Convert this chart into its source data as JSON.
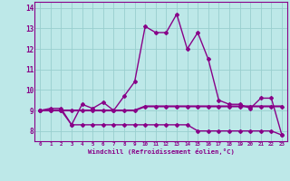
{
  "xlabel": "Windchill (Refroidissement éolien,°C)",
  "x_values": [
    0,
    1,
    2,
    3,
    4,
    5,
    6,
    7,
    8,
    9,
    10,
    11,
    12,
    13,
    14,
    15,
    16,
    17,
    18,
    19,
    20,
    21,
    22,
    23
  ],
  "line_upper_y": [
    9.0,
    9.0,
    9.0,
    9.0,
    9.0,
    9.0,
    9.0,
    9.0,
    9.0,
    9.0,
    9.2,
    9.2,
    9.2,
    9.2,
    9.2,
    9.2,
    9.2,
    9.2,
    9.2,
    9.2,
    9.2,
    9.2,
    9.2,
    9.2
  ],
  "line_lower_y": [
    9.0,
    9.0,
    9.0,
    8.3,
    8.3,
    8.3,
    8.3,
    8.3,
    8.3,
    8.3,
    8.3,
    8.3,
    8.3,
    8.3,
    8.3,
    8.0,
    8.0,
    8.0,
    8.0,
    8.0,
    8.0,
    8.0,
    8.0,
    7.8
  ],
  "line_main_y": [
    9.0,
    9.1,
    9.1,
    8.3,
    9.3,
    9.1,
    9.4,
    9.0,
    9.7,
    10.4,
    13.1,
    12.8,
    12.8,
    13.7,
    12.0,
    12.8,
    11.5,
    9.5,
    9.3,
    9.3,
    9.1,
    9.6,
    9.6,
    7.8
  ],
  "bg_color": "#bde8e8",
  "grid_color": "#99cece",
  "line_color": "#880088",
  "axis_bar_color": "#880088",
  "ylim": [
    7.5,
    14.3
  ],
  "xlim": [
    -0.5,
    23.5
  ],
  "yticks": [
    8,
    9,
    10,
    11,
    12,
    13,
    14
  ],
  "xticks": [
    0,
    1,
    2,
    3,
    4,
    5,
    6,
    7,
    8,
    9,
    10,
    11,
    12,
    13,
    14,
    15,
    16,
    17,
    18,
    19,
    20,
    21,
    22,
    23
  ]
}
